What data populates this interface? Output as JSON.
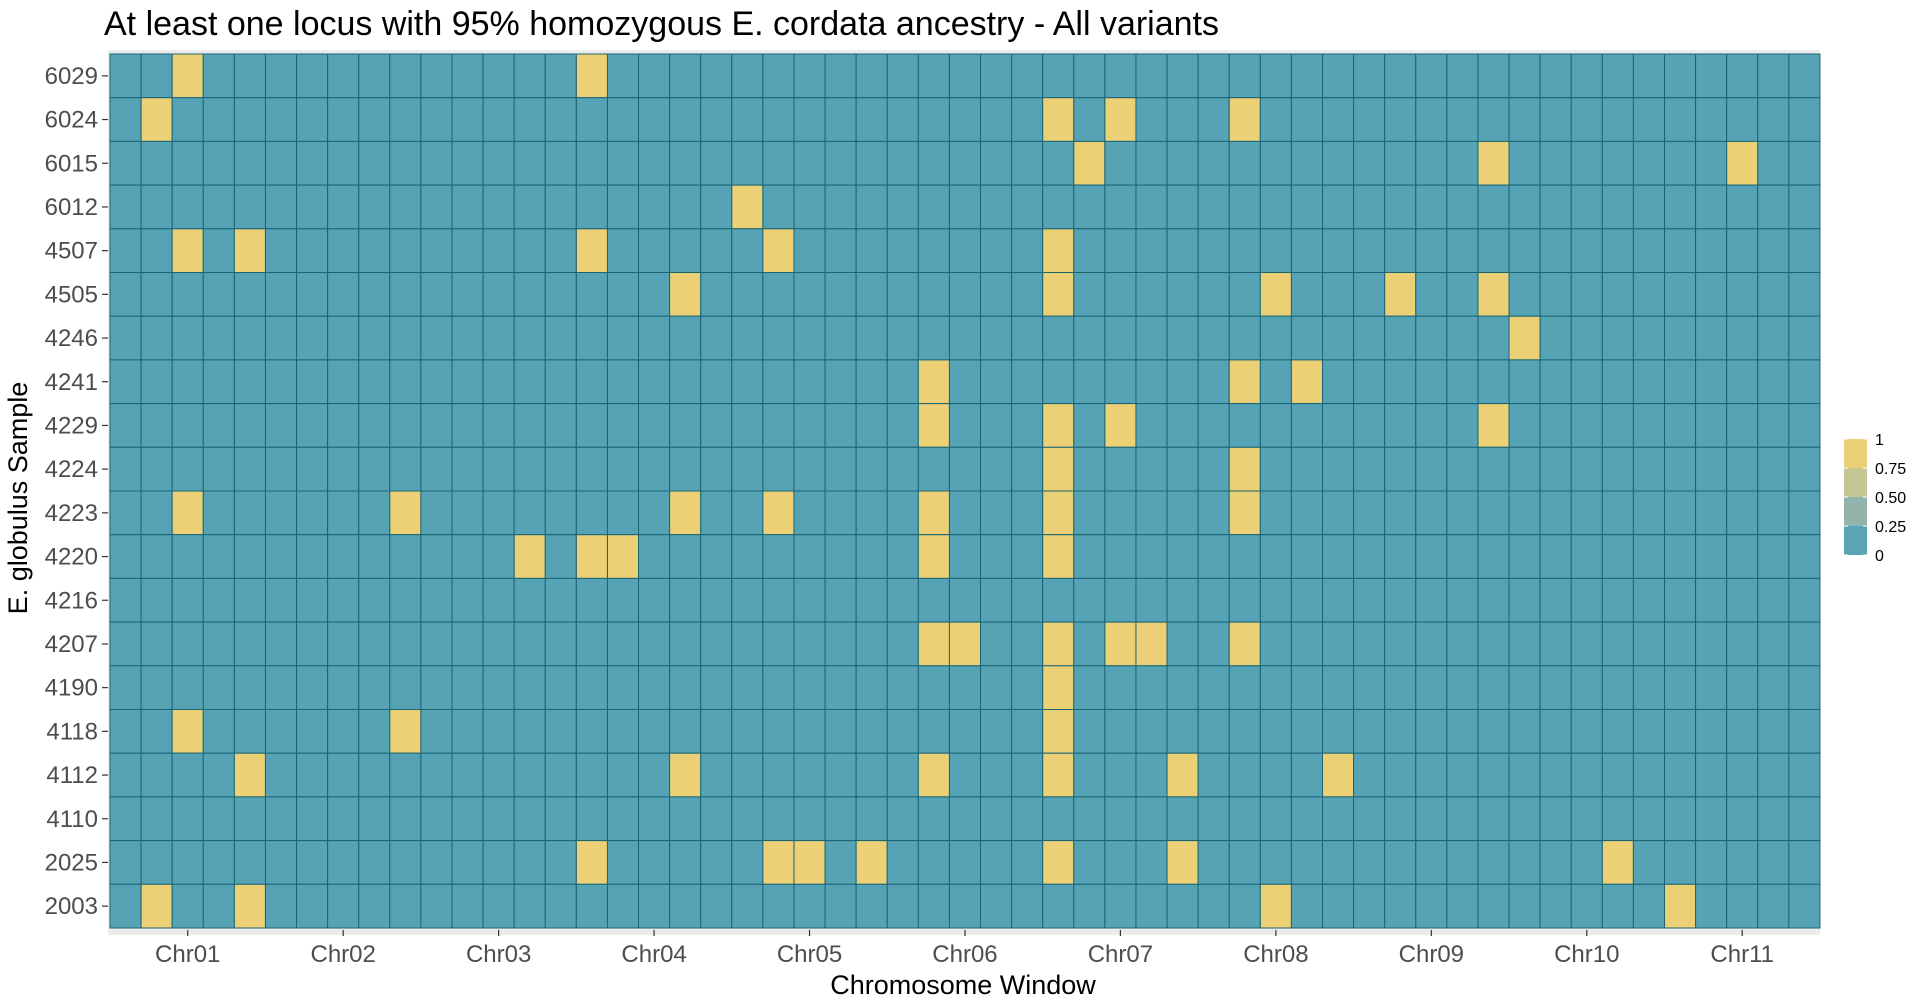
{
  "chart_data": {
    "type": "heatmap",
    "title": "At least one locus with 95% homozygous E. cordata ancestry - All variants",
    "xlabel": "Chromosome Window",
    "ylabel": "E. globulus Sample",
    "x_tick_labels": [
      "Chr01",
      "Chr02",
      "Chr03",
      "Chr04",
      "Chr05",
      "Chr06",
      "Chr07",
      "Chr08",
      "Chr09",
      "Chr10",
      "Chr11"
    ],
    "x_tick_window_index": [
      2,
      7,
      12,
      17,
      22,
      27,
      32,
      37,
      42,
      47,
      52
    ],
    "n_windows": 55,
    "samples": [
      "6029",
      "6024",
      "6015",
      "6012",
      "4507",
      "4505",
      "4246",
      "4241",
      "4229",
      "4224",
      "4223",
      "4220",
      "4216",
      "4207",
      "4190",
      "4118",
      "4112",
      "4110",
      "2025",
      "2003"
    ],
    "value_range": [
      0,
      1
    ],
    "legend": {
      "placement": "right",
      "breaks": [
        "1",
        "0.75",
        "0.50",
        "0.25",
        "0"
      ],
      "colors": [
        "#ebd075",
        "#c6c694",
        "#94b3ab",
        "#5ba4b6"
      ]
    },
    "colors": {
      "high": "#ebd075",
      "low": "#56a3b6",
      "cell_border": "#1a6474",
      "panel_background": "#ebebeb"
    },
    "values_equal_1": [
      {
        "sample": "6029",
        "windows": [
          2,
          15
        ]
      },
      {
        "sample": "6024",
        "windows": [
          1,
          30,
          32,
          36
        ]
      },
      {
        "sample": "6015",
        "windows": [
          31,
          44,
          52
        ]
      },
      {
        "sample": "6012",
        "windows": [
          20
        ]
      },
      {
        "sample": "4507",
        "windows": [
          2,
          4,
          15,
          21,
          30
        ]
      },
      {
        "sample": "4505",
        "windows": [
          18,
          30,
          37,
          41,
          44
        ]
      },
      {
        "sample": "4246",
        "windows": [
          45
        ]
      },
      {
        "sample": "4241",
        "windows": [
          26,
          36,
          38
        ]
      },
      {
        "sample": "4229",
        "windows": [
          26,
          30,
          32,
          44
        ]
      },
      {
        "sample": "4224",
        "windows": [
          30,
          36
        ]
      },
      {
        "sample": "4223",
        "windows": [
          2,
          9,
          18,
          21,
          26,
          30,
          36
        ]
      },
      {
        "sample": "4220",
        "windows": [
          13,
          15,
          16,
          26,
          30
        ]
      },
      {
        "sample": "4216",
        "windows": []
      },
      {
        "sample": "4207",
        "windows": [
          26,
          27,
          30,
          32,
          33,
          36
        ]
      },
      {
        "sample": "4190",
        "windows": [
          30
        ]
      },
      {
        "sample": "4118",
        "windows": [
          2,
          9,
          30
        ]
      },
      {
        "sample": "4112",
        "windows": [
          4,
          18,
          26,
          30,
          34,
          39
        ]
      },
      {
        "sample": "4110",
        "windows": []
      },
      {
        "sample": "2025",
        "windows": [
          15,
          21,
          22,
          24,
          30,
          34,
          48
        ]
      },
      {
        "sample": "2003",
        "windows": [
          1,
          4,
          37,
          50
        ]
      }
    ]
  }
}
